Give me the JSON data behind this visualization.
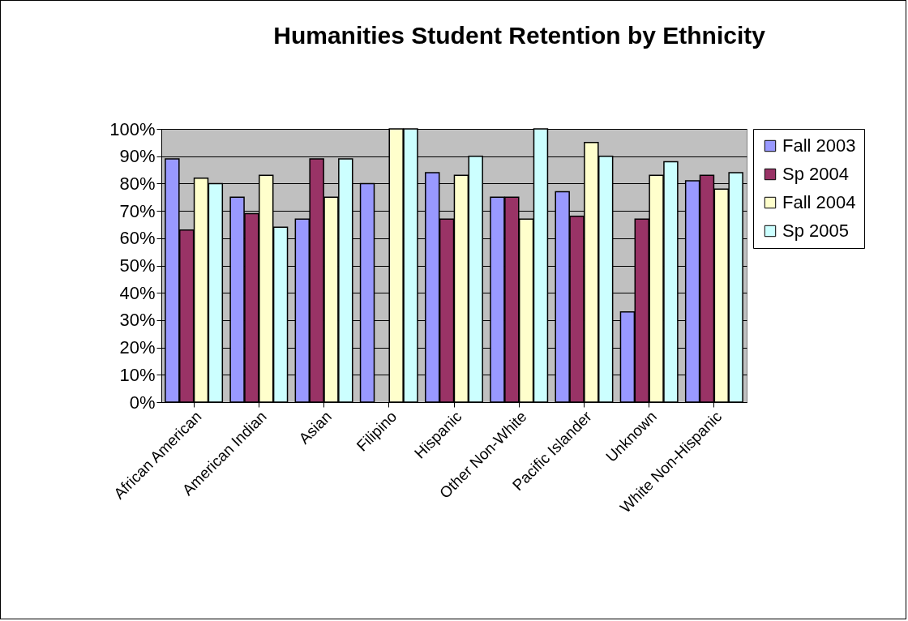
{
  "chart_data": {
    "type": "bar",
    "title": "Humanities Student Retention by Ethnicity",
    "categories": [
      "African American",
      "American Indian",
      "Asian",
      "Filipino",
      "Hispanic",
      "Other Non-White",
      "Pacific Islander",
      "Unknown",
      "White Non-Hispanic"
    ],
    "series": [
      {
        "name": "Fall 2003",
        "color": "#9999ff",
        "values": [
          89,
          75,
          67,
          80,
          84,
          75,
          77,
          33,
          81
        ]
      },
      {
        "name": "Sp 2004",
        "color": "#993366",
        "values": [
          63,
          69,
          89,
          null,
          67,
          75,
          68,
          67,
          83
        ]
      },
      {
        "name": "Fall 2004",
        "color": "#ffffcc",
        "values": [
          82,
          83,
          75,
          100,
          83,
          67,
          95,
          83,
          78
        ]
      },
      {
        "name": "Sp 2005",
        "color": "#ccffff",
        "values": [
          80,
          64,
          89,
          100,
          90,
          100,
          90,
          88,
          84
        ]
      }
    ],
    "ylim": [
      0,
      100
    ],
    "yticks": [
      {
        "value": 0,
        "label": "0%"
      },
      {
        "value": 10,
        "label": "10%"
      },
      {
        "value": 20,
        "label": "20%"
      },
      {
        "value": 30,
        "label": "30%"
      },
      {
        "value": 40,
        "label": "40%"
      },
      {
        "value": 50,
        "label": "50%"
      },
      {
        "value": 60,
        "label": "60%"
      },
      {
        "value": 70,
        "label": "70%"
      },
      {
        "value": 80,
        "label": "80%"
      },
      {
        "value": 90,
        "label": "90%"
      },
      {
        "value": 100,
        "label": "100%"
      }
    ],
    "grid": "y",
    "legend": "right"
  }
}
